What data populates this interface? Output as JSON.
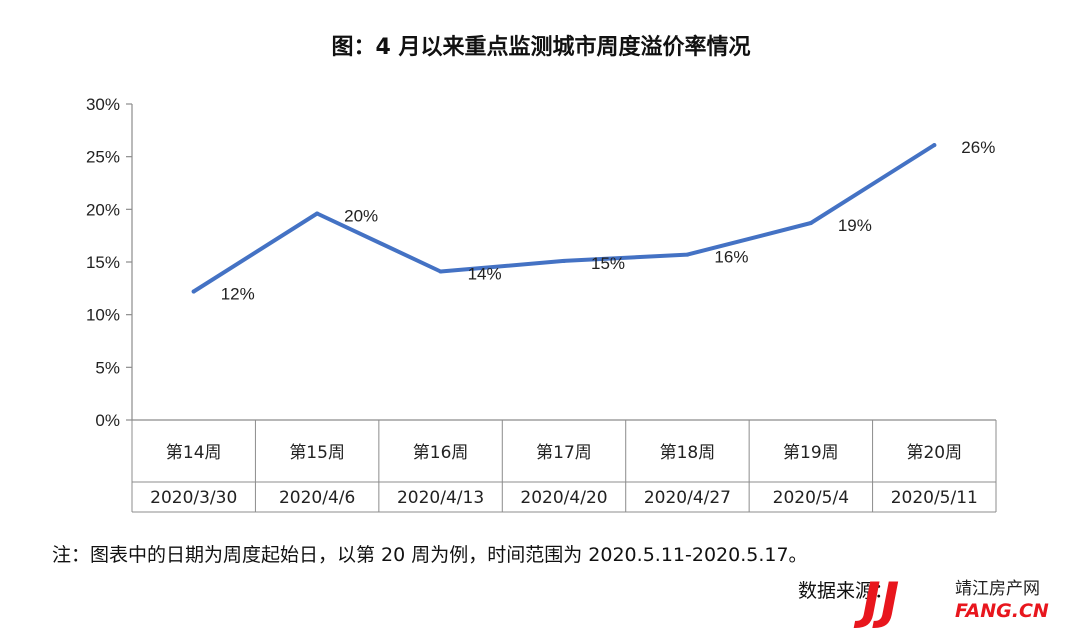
{
  "chart_data": {
    "type": "line",
    "title": "图：4 月以来重点监测城市周度溢价率情况",
    "categories": [
      "第14周",
      "第15周",
      "第16周",
      "第17周",
      "第18周",
      "第19周",
      "第20周"
    ],
    "dates": [
      "2020/3/30",
      "2020/4/6",
      "2020/4/13",
      "2020/4/20",
      "2020/4/27",
      "2020/5/4",
      "2020/5/11"
    ],
    "values": [
      12.2,
      19.6,
      14.1,
      15.1,
      15.7,
      18.7,
      26.1
    ],
    "data_labels": [
      "12%",
      "20%",
      "14%",
      "15%",
      "16%",
      "19%",
      "26%"
    ],
    "yticks": [
      "0%",
      "5%",
      "10%",
      "15%",
      "20%",
      "25%",
      "30%"
    ],
    "ylim": [
      0,
      30
    ],
    "line_color": "#4472c4",
    "grid": false,
    "legend": "none"
  },
  "note": "注：图表中的日期为周度起始日，以第 20 周为例，时间范围为 2020.5.11-2020.5.17。",
  "source": "数据来源：",
  "watermark": {
    "letters": "JJ",
    "cn": "靖江房产网",
    "en": "FANG.CN",
    "color": "#e8161d"
  }
}
